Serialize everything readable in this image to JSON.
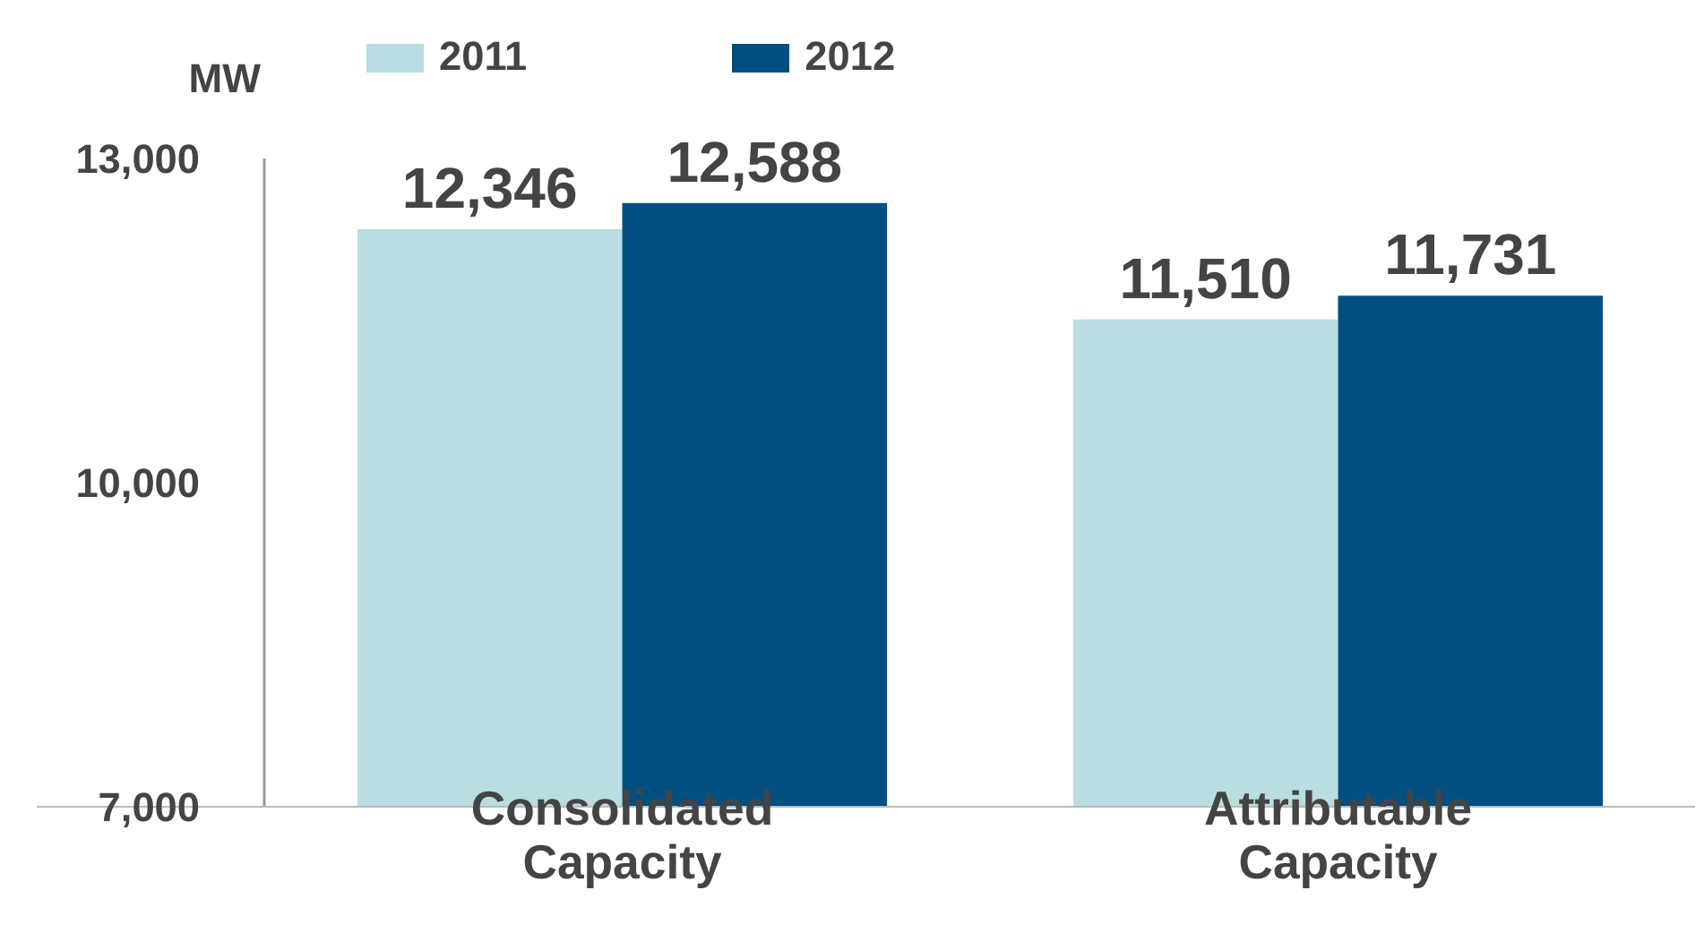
{
  "chart_data": {
    "type": "bar",
    "ylabel": "MW",
    "categories": [
      "Consolidated Capacity",
      "Attributable Capacity"
    ],
    "series": [
      {
        "name": "2011",
        "color": "#b9dde1",
        "values": [
          12346,
          11510
        ],
        "value_labels": [
          "12,346",
          "11,510"
        ]
      },
      {
        "name": "2012",
        "color": "#004f80",
        "values": [
          12588,
          11731
        ],
        "value_labels": [
          "12,588",
          "11,731"
        ]
      }
    ],
    "ylim": [
      7000,
      13000
    ],
    "yticks": [
      {
        "value": 7000,
        "label": "7,000"
      },
      {
        "value": 10000,
        "label": "10,000"
      },
      {
        "value": 13000,
        "label": "13,000"
      }
    ],
    "grid": false,
    "legend": "top"
  }
}
